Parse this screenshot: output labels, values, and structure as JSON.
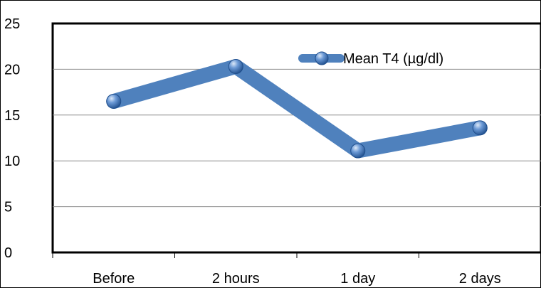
{
  "chart_data": {
    "type": "line",
    "categories": [
      "Before",
      "2 hours",
      "1 day",
      "2 days"
    ],
    "series": [
      {
        "name": "Mean T4 (µg/dl)",
        "values": [
          16.5,
          20.3,
          11.1,
          13.6
        ],
        "color": "#4F81BD"
      }
    ],
    "ylim": [
      0,
      25
    ],
    "yticks": [
      0,
      5,
      10,
      15,
      20,
      25
    ],
    "grid": true,
    "legend": "top-right",
    "marker": "sphere"
  }
}
